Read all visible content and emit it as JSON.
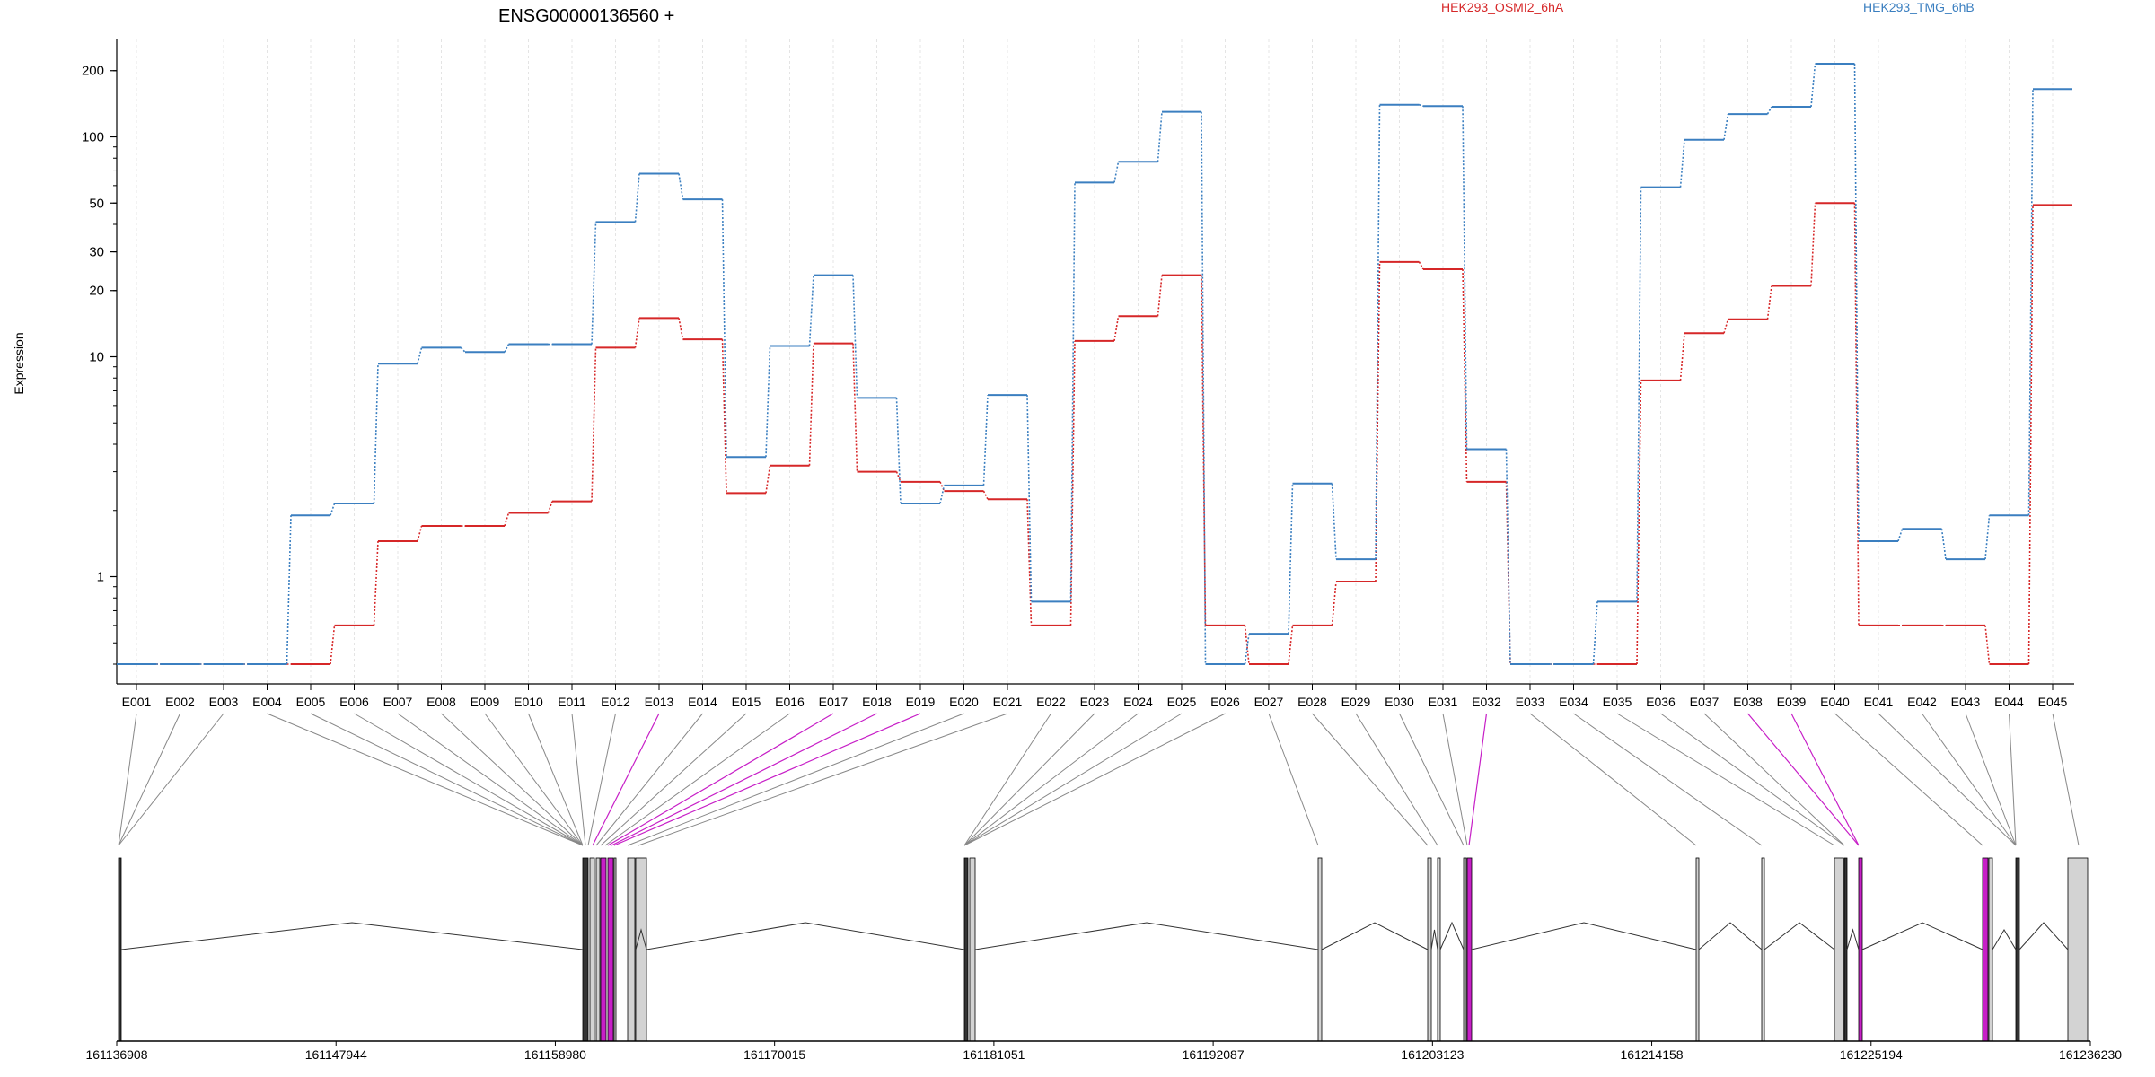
{
  "chart_data": {
    "type": "line",
    "title": "ENSG00000136560 +",
    "ylabel": "Expression",
    "xlabel": "",
    "y_scale": "log",
    "ylim": [
      0.4,
      250
    ],
    "y_ticks": [
      1,
      10,
      20,
      30,
      50,
      100,
      200
    ],
    "grid": "vertical dashed per exon",
    "legend_placement": "top",
    "exons": [
      "E001",
      "E002",
      "E003",
      "E004",
      "E005",
      "E006",
      "E007",
      "E008",
      "E009",
      "E010",
      "E011",
      "E012",
      "E013",
      "E014",
      "E015",
      "E016",
      "E017",
      "E018",
      "E019",
      "E020",
      "E021",
      "E022",
      "E023",
      "E024",
      "E025",
      "E026",
      "E027",
      "E028",
      "E029",
      "E030",
      "E031",
      "E032",
      "E033",
      "E034",
      "E035",
      "E036",
      "E037",
      "E038",
      "E039",
      "E040",
      "E041",
      "E042",
      "E043",
      "E044",
      "E045"
    ],
    "series": [
      {
        "name": "HEK293_OSMI2_6hA",
        "color": "#d62728",
        "values": [
          0.4,
          0.4,
          0.4,
          0.4,
          0.4,
          0.6,
          1.45,
          1.7,
          1.7,
          1.95,
          2.2,
          11,
          15,
          12,
          2.4,
          3.2,
          11.5,
          3,
          2.7,
          2.45,
          2.25,
          0.6,
          11.8,
          15.3,
          23.5,
          0.6,
          0.4,
          0.6,
          0.95,
          27,
          25,
          2.7,
          0.4,
          0.4,
          0.4,
          7.8,
          12.8,
          14.8,
          21,
          50,
          0.6,
          0.6,
          0.6,
          0.4,
          49
        ]
      },
      {
        "name": "HEK293_TMG_6hB",
        "color": "#3b7fc0",
        "values": [
          0.4,
          0.4,
          0.4,
          0.4,
          1.9,
          2.15,
          9.3,
          11,
          10.5,
          11.4,
          11.4,
          41,
          68,
          52,
          3.5,
          11.2,
          23.5,
          6.5,
          2.15,
          2.6,
          6.7,
          0.77,
          62,
          77,
          130,
          0.4,
          0.55,
          2.65,
          1.2,
          140,
          138,
          3.8,
          0.4,
          0.4,
          0.77,
          59,
          97,
          127,
          137,
          215,
          1.45,
          1.65,
          1.2,
          1.9,
          165
        ]
      }
    ],
    "genome_axis": {
      "tick_labels": [
        "161136908",
        "161147944",
        "161158980",
        "161170015",
        "161181051",
        "161192087",
        "161203123",
        "161214158",
        "161225194",
        "161236230"
      ]
    },
    "highlighted_exons": [
      "E013",
      "E017",
      "E018",
      "E019",
      "E032",
      "E038",
      "E039"
    ],
    "colors": {
      "osmi": "#d62728",
      "tmg": "#3b7fc0",
      "highlight": "#c71fc7",
      "exon_fill": "#d3d3d3"
    }
  }
}
